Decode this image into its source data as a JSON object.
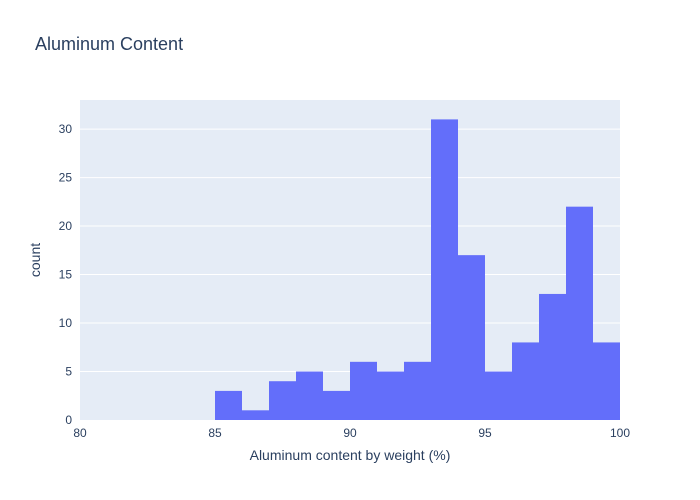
{
  "chart_data": {
    "type": "bar",
    "title": "Aluminum Content",
    "xlabel": "Aluminum content by weight (%)",
    "ylabel": "count",
    "xlim": [
      80,
      100
    ],
    "ylim": [
      0,
      33
    ],
    "x_ticks": [
      {
        "value": 80,
        "label": "80"
      },
      {
        "value": 85,
        "label": "85"
      },
      {
        "value": 90,
        "label": "90"
      },
      {
        "value": 95,
        "label": "95"
      },
      {
        "value": 100,
        "label": "100"
      }
    ],
    "y_ticks": [
      {
        "value": 0,
        "label": "0"
      },
      {
        "value": 5,
        "label": "5"
      },
      {
        "value": 10,
        "label": "10"
      },
      {
        "value": 15,
        "label": "15"
      },
      {
        "value": 20,
        "label": "20"
      },
      {
        "value": 25,
        "label": "25"
      },
      {
        "value": 30,
        "label": "30"
      }
    ],
    "bins": [
      {
        "start": 85,
        "end": 86,
        "count": 3
      },
      {
        "start": 86,
        "end": 87,
        "count": 1
      },
      {
        "start": 87,
        "end": 88,
        "count": 4
      },
      {
        "start": 88,
        "end": 89,
        "count": 5
      },
      {
        "start": 89,
        "end": 90,
        "count": 3
      },
      {
        "start": 90,
        "end": 91,
        "count": 6
      },
      {
        "start": 91,
        "end": 92,
        "count": 5
      },
      {
        "start": 92,
        "end": 93,
        "count": 6
      },
      {
        "start": 93,
        "end": 94,
        "count": 31
      },
      {
        "start": 94,
        "end": 95,
        "count": 17
      },
      {
        "start": 95,
        "end": 96,
        "count": 5
      },
      {
        "start": 96,
        "end": 97,
        "count": 8
      },
      {
        "start": 97,
        "end": 98,
        "count": 13
      },
      {
        "start": 98,
        "end": 99,
        "count": 22
      },
      {
        "start": 99,
        "end": 100,
        "count": 8
      }
    ],
    "grid": true,
    "colors": {
      "bar": "#636efa",
      "plot_background": "#e5ecf6",
      "grid": "#ffffff",
      "text": "#2a3f5f"
    }
  }
}
